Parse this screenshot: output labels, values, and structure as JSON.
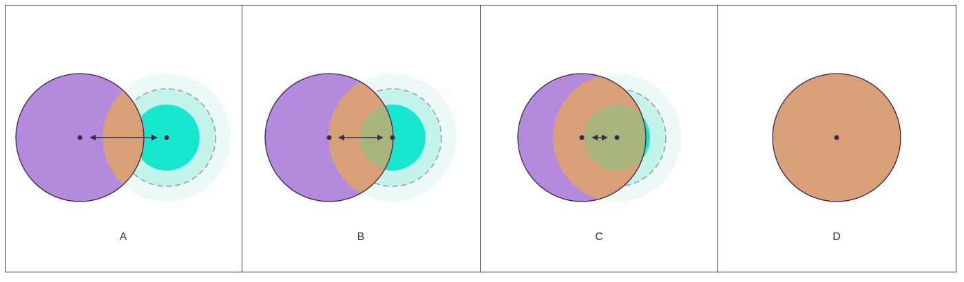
{
  "panels": [
    {
      "id": "A",
      "label": "A"
    },
    {
      "id": "B",
      "label": "B"
    },
    {
      "id": "C",
      "label": "C"
    },
    {
      "id": "D",
      "label": "D"
    }
  ],
  "colors": {
    "background": "#ffffff",
    "panel_border": "#333333",
    "circle_outline": "#3a2350",
    "purple_fill": "#b48bdc",
    "teal_fill": "#18e6cf",
    "teal_halo": "#c3f3ea",
    "halo_dashes": "#999999",
    "overlap_orange": "#d9a077",
    "overlap_olive": "#a8b47d",
    "center_dot": "#3a2d45",
    "arrow": "#3a2d45"
  },
  "icons": {
    "center_marker": "dot",
    "distance_marker": "double-headed-arrow"
  }
}
